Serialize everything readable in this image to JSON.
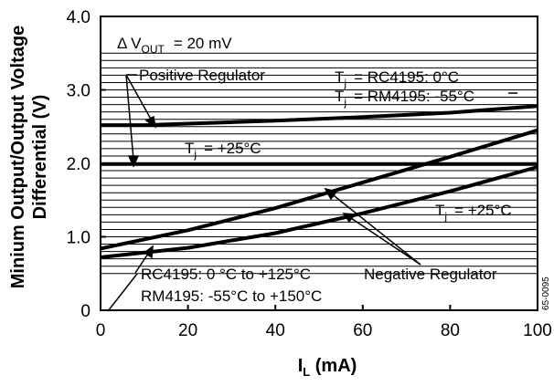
{
  "chart_data": {
    "type": "line",
    "xlabel": "I",
    "xlabel_sub": "L",
    "xlabel_unit": " (mA)",
    "ylabel_line1": "Minium Output/Output Voltage",
    "ylabel_line2": "Differential (V)",
    "xlim": [
      0,
      100
    ],
    "ylim": [
      0,
      4.0
    ],
    "x_ticks": [
      "0",
      "20",
      "40",
      "60",
      "80",
      "100"
    ],
    "y_ticks": [
      "0",
      "1.0",
      "2.0",
      "3.0",
      "4.0"
    ],
    "grid": true,
    "series": [
      {
        "x": [
          0,
          10,
          20,
          40,
          60,
          80,
          100
        ],
        "values": [
          2.52,
          2.52,
          2.54,
          2.58,
          2.63,
          2.69,
          2.78
        ]
      },
      {
        "x": [
          0,
          100
        ],
        "values": [
          1.99,
          1.99
        ]
      },
      {
        "x": [
          0,
          20,
          40,
          60,
          80,
          100
        ],
        "values": [
          0.84,
          1.09,
          1.39,
          1.74,
          2.09,
          2.45
        ]
      },
      {
        "x": [
          0,
          20,
          40,
          60,
          80,
          100
        ],
        "values": [
          0.72,
          0.85,
          1.05,
          1.32,
          1.62,
          1.95
        ]
      }
    ],
    "annotations": {
      "delta_prefix": "Δ V",
      "delta_sub": "OUT",
      "delta_value": "= 20 mV",
      "positive_regulator": "Positive Regulator",
      "tj_rc_prefix": "T",
      "tj_rc_sub": "j",
      "tj_rc_value": "= RC4195: 0°C",
      "tj_rm_prefix": "T",
      "tj_rm_sub": "j",
      "tj_rm_value": "= RM4195: -55°C",
      "tj_mid_prefix": "T",
      "tj_mid_sub": "j",
      "tj_mid_value": "=  +25°C",
      "tj_right_prefix": "T",
      "tj_right_sub": "j",
      "tj_right_value": "= +25°C",
      "rc_range": "RC4195: 0 °C to +125°C",
      "rm_range": "RM4195: -55°C to +150°C",
      "negative_regulator": "Negative Regulator",
      "figure_id": "65-0095"
    }
  }
}
